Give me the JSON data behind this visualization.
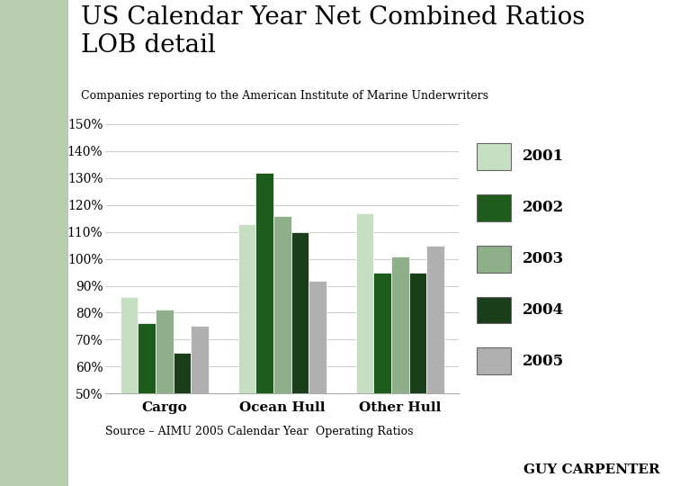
{
  "title": "US Calendar Year Net Combined Ratios\nLOB detail",
  "subtitle": "Companies reporting to the American Institute of Marine Underwriters",
  "source": "Source – AIMU 2005 Calendar Year  Operating Ratios",
  "categories": [
    "Cargo",
    "Ocean Hull",
    "Other Hull"
  ],
  "years": [
    "2001",
    "2002",
    "2003",
    "2004",
    "2005"
  ],
  "colors": {
    "2001": "#c6dfc3",
    "2002": "#1e5c1e",
    "2003": "#8faf8a",
    "2004": "#1a3d1a",
    "2005": "#b0b0b0"
  },
  "data": {
    "Cargo": [
      86,
      76,
      81,
      65,
      75
    ],
    "Ocean Hull": [
      113,
      132,
      116,
      110,
      92
    ],
    "Other Hull": [
      117,
      95,
      101,
      95,
      105
    ]
  },
  "ylim": [
    50,
    150
  ],
  "yticks": [
    50,
    60,
    70,
    80,
    90,
    100,
    110,
    120,
    130,
    140,
    150
  ],
  "background_color": "#ffffff",
  "stripe_color": "#b8ccb0",
  "title_fontsize": 20,
  "subtitle_fontsize": 9,
  "legend_fontsize": 12,
  "tick_fontsize": 10,
  "xlabel_fontsize": 11,
  "source_fontsize": 9
}
